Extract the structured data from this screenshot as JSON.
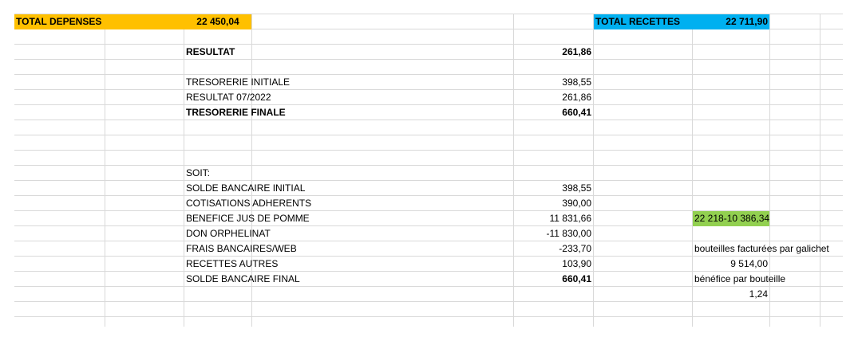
{
  "colors": {
    "orange": "#ffc000",
    "blue": "#00b0f0",
    "green": "#92d050",
    "gridline": "#d9d9d9"
  },
  "header": {
    "total_depenses_label": "TOTAL DEPENSES",
    "total_depenses_value": "22 450,04",
    "total_recettes_label": "TOTAL RECETTES",
    "total_recettes_value": "22 711,90"
  },
  "resultat": {
    "label": "RESULTAT",
    "value": "261,86"
  },
  "tresorerie": [
    {
      "label": "TRESORERIE INITIALE",
      "value": "398,55",
      "bold": false
    },
    {
      "label": "RESULTAT 07/2022",
      "value": "261,86",
      "bold": false
    },
    {
      "label": "TRESORERIE FINALE",
      "value": "660,41",
      "bold": true
    }
  ],
  "soit_label": "SOIT:",
  "soit_rows": [
    {
      "label": "SOLDE BANCAIRE INITIAL",
      "value": "398,55",
      "bold": false
    },
    {
      "label": "COTISATIONS ADHERENTS",
      "value": "390,00",
      "bold": false
    },
    {
      "label": "BENEFICE JUS DE POMME",
      "value": "11 831,66",
      "bold": false
    },
    {
      "label": "DON ORPHELINAT",
      "value": "-11 830,00",
      "bold": false
    },
    {
      "label": "FRAIS BANCAIRES/WEB",
      "value": "-233,70",
      "bold": false
    },
    {
      "label": "RECETTES AUTRES",
      "value": "103,90",
      "bold": false
    },
    {
      "label": "SOLDE BANCAIRE FINAL",
      "value": "660,41",
      "bold": true
    }
  ],
  "notes": {
    "formula": "22 218-10 386,34",
    "bouteilles_label": "bouteilles facturées par galichet",
    "bouteilles_value": "9 514,00",
    "benefice_label": "bénéfice par bouteille",
    "benefice_value": "1,24"
  }
}
